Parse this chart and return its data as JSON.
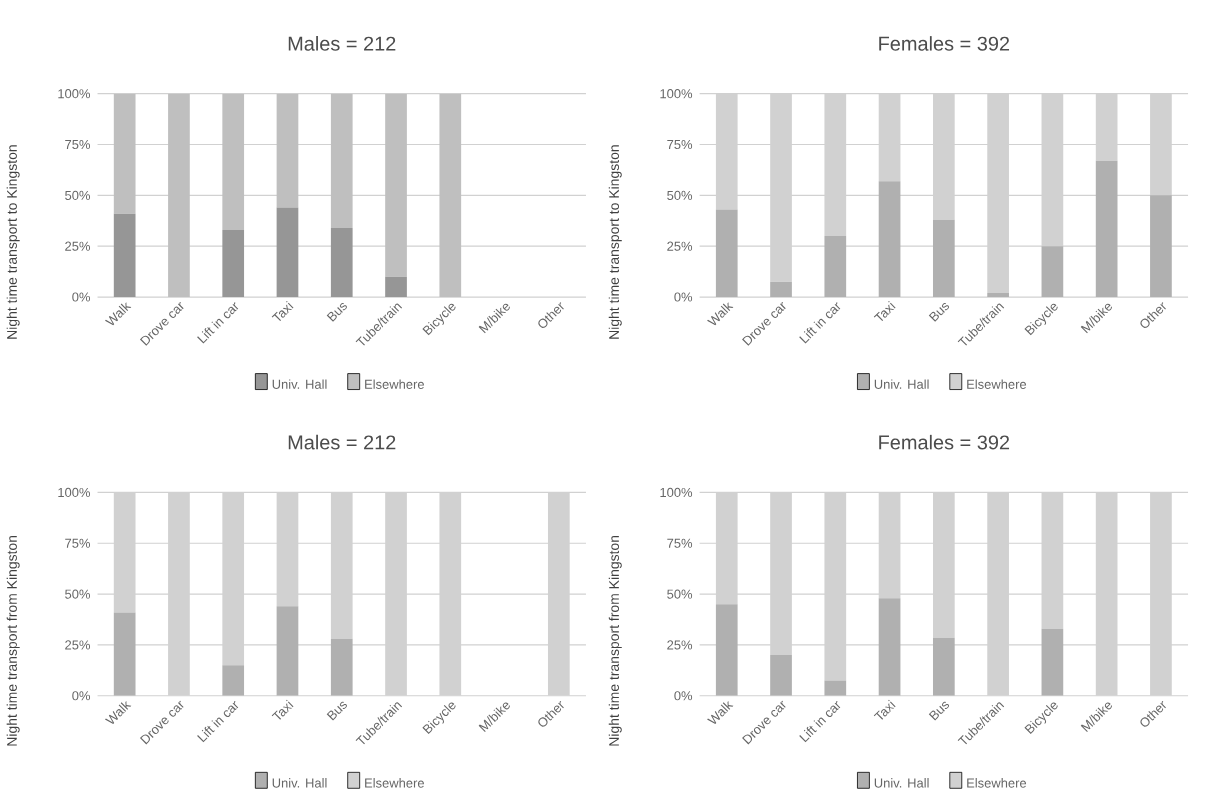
{
  "chart_data": [
    {
      "type": "bar",
      "stacked": true,
      "title": "Males = 212",
      "ylabel": "Night time transport to Kingston",
      "categories": [
        "Walk",
        "Drove car",
        "Lift in car",
        "Taxi",
        "Bus",
        "Tube/train",
        "Bicycle",
        "M/bike",
        "Other"
      ],
      "series": [
        {
          "name": "Univ. Hall",
          "color": "#969696",
          "values": [
            41,
            0,
            33,
            44,
            34,
            10,
            0,
            null,
            null
          ]
        },
        {
          "name": "Elsewhere",
          "color": "#bfbfbf",
          "values": [
            59,
            100,
            67,
            56,
            66,
            90,
            100,
            null,
            null
          ]
        }
      ],
      "ylim": [
        0,
        100
      ],
      "yticks": [
        {
          "value": 0,
          "label": "0%"
        },
        {
          "value": 25,
          "label": "25%"
        },
        {
          "value": 50,
          "label": "50%"
        },
        {
          "value": 75,
          "label": "75%"
        },
        {
          "value": 100,
          "label": "100%"
        }
      ],
      "grid": "y",
      "legend": "bottom"
    },
    {
      "type": "bar",
      "stacked": true,
      "title": "Females = 392",
      "ylabel": "Night time transport to Kingston",
      "categories": [
        "Walk",
        "Drove car",
        "Lift in car",
        "Taxi",
        "Bus",
        "Tube/train",
        "Bicycle",
        "M/bike",
        "Other"
      ],
      "series": [
        {
          "name": "Univ. Hall",
          "color": "#b0b0b0",
          "values": [
            43,
            7.5,
            30,
            57,
            38,
            2,
            25,
            67,
            50
          ]
        },
        {
          "name": "Elsewhere",
          "color": "#d1d1d1",
          "values": [
            57,
            92.5,
            70,
            43,
            62,
            98,
            75,
            33,
            50
          ]
        }
      ],
      "ylim": [
        0,
        100
      ],
      "yticks": [
        {
          "value": 0,
          "label": "0%"
        },
        {
          "value": 25,
          "label": "25%"
        },
        {
          "value": 50,
          "label": "50%"
        },
        {
          "value": 75,
          "label": "75%"
        },
        {
          "value": 100,
          "label": "100%"
        }
      ],
      "grid": "y",
      "legend": "bottom"
    },
    {
      "type": "bar",
      "stacked": true,
      "title": "Males = 212",
      "ylabel": "Night time transport from Kingston",
      "categories": [
        "Walk",
        "Drove car",
        "Lift in car",
        "Taxi",
        "Bus",
        "Tube/train",
        "Bicycle",
        "M/bike",
        "Other"
      ],
      "series": [
        {
          "name": "Univ. Hall",
          "color": "#b0b0b0",
          "values": [
            41,
            0,
            15,
            44,
            28,
            0,
            0,
            null,
            0
          ]
        },
        {
          "name": "Elsewhere",
          "color": "#d1d1d1",
          "values": [
            59,
            100,
            85,
            56,
            72,
            100,
            100,
            null,
            100
          ]
        }
      ],
      "ylim": [
        0,
        100
      ],
      "yticks": [
        {
          "value": 0,
          "label": "0%"
        },
        {
          "value": 25,
          "label": "25%"
        },
        {
          "value": 50,
          "label": "50%"
        },
        {
          "value": 75,
          "label": "75%"
        },
        {
          "value": 100,
          "label": "100%"
        }
      ],
      "grid": "y",
      "legend": "bottom"
    },
    {
      "type": "bar",
      "stacked": true,
      "title": "Females = 392",
      "ylabel": "Night time transport from Kingston",
      "categories": [
        "Walk",
        "Drove car",
        "Lift in car",
        "Taxi",
        "Bus",
        "Tube/train",
        "Bicycle",
        "M/bike",
        "Other"
      ],
      "series": [
        {
          "name": "Univ. Hall",
          "color": "#b0b0b0",
          "values": [
            45,
            20,
            7.5,
            48,
            28.5,
            0,
            33,
            0,
            0
          ]
        },
        {
          "name": "Elsewhere",
          "color": "#d1d1d1",
          "values": [
            55,
            80,
            92.5,
            52,
            71.5,
            100,
            67,
            100,
            100
          ]
        }
      ],
      "ylim": [
        0,
        100
      ],
      "yticks": [
        {
          "value": 0,
          "label": "0%"
        },
        {
          "value": 25,
          "label": "25%"
        },
        {
          "value": 50,
          "label": "50%"
        },
        {
          "value": 75,
          "label": "75%"
        },
        {
          "value": 100,
          "label": "100%"
        }
      ],
      "grid": "y",
      "legend": "bottom"
    }
  ]
}
